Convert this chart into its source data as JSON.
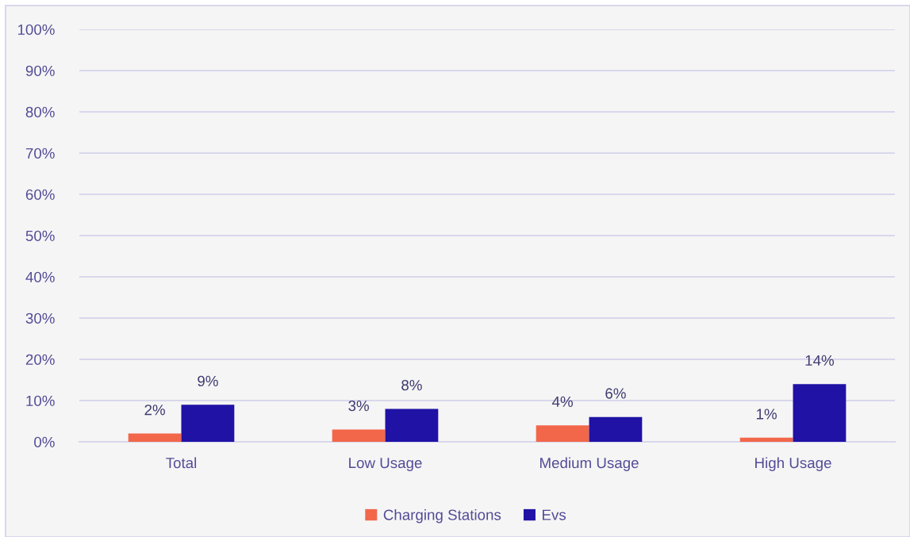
{
  "chart_data": {
    "type": "bar",
    "categories": [
      "Total",
      "Low Usage",
      "Medium Usage",
      "High Usage"
    ],
    "series": [
      {
        "name": "Charging Stations",
        "color": "#f2674a",
        "values": [
          2,
          3,
          4,
          1
        ],
        "value_labels": [
          "2%",
          "3%",
          "4%",
          "1%"
        ]
      },
      {
        "name": "Evs",
        "color": "#1f12a5",
        "values": [
          9,
          8,
          6,
          14
        ],
        "value_labels": [
          "9%",
          "8%",
          "6%",
          "14%"
        ]
      }
    ],
    "ylim": [
      0,
      100
    ],
    "yticks": [
      {
        "value": 0,
        "label": "0%"
      },
      {
        "value": 10,
        "label": "10%"
      },
      {
        "value": 20,
        "label": "20%"
      },
      {
        "value": 30,
        "label": "30%"
      },
      {
        "value": 40,
        "label": "40%"
      },
      {
        "value": 50,
        "label": "50%"
      },
      {
        "value": 60,
        "label": "60%"
      },
      {
        "value": 70,
        "label": "70%"
      },
      {
        "value": 80,
        "label": "80%"
      },
      {
        "value": 90,
        "label": "90%"
      },
      {
        "value": 100,
        "label": "100%"
      }
    ],
    "grid": "y",
    "legend": "bottom"
  }
}
